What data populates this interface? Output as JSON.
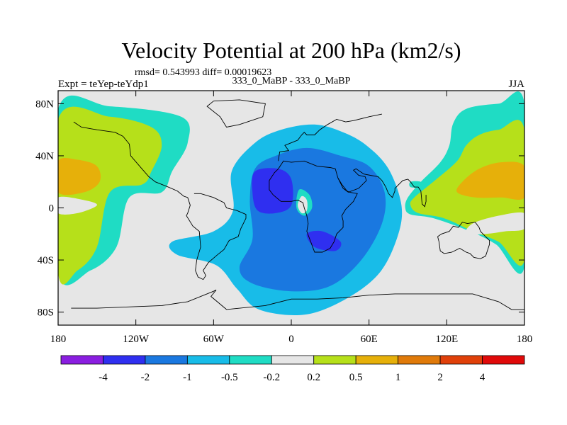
{
  "chart_data": {
    "type": "heatmap",
    "title": "Velocity Potential at 200 hPa (km2/s)",
    "stats_line": "rmsd= 0.543993 diff= 0.00019623",
    "left_label": "Expt = teYep-teYdp1",
    "center_label": "333_0_MaBP - 333_0_MaBP",
    "right_label": "JJA",
    "x_range": [
      -180,
      180
    ],
    "y_range": [
      -90,
      90
    ],
    "x_ticks": [
      {
        "value": -180,
        "label": "180"
      },
      {
        "value": -120,
        "label": "120W"
      },
      {
        "value": -60,
        "label": "60W"
      },
      {
        "value": 0,
        "label": "0"
      },
      {
        "value": 60,
        "label": "60E"
      },
      {
        "value": 120,
        "label": "120E"
      },
      {
        "value": 180,
        "label": "180"
      }
    ],
    "y_ticks": [
      {
        "value": 80,
        "label": "80N"
      },
      {
        "value": 40,
        "label": "40N"
      },
      {
        "value": 0,
        "label": "0"
      },
      {
        "value": -40,
        "label": "40S"
      },
      {
        "value": -80,
        "label": "80S"
      }
    ],
    "levels": [
      "-4",
      "-2",
      "-1",
      "-0.5",
      "-0.2",
      "0.2",
      "0.5",
      "1",
      "2",
      "4"
    ],
    "colors": [
      "#8a1ee0",
      "#2f2ff0",
      "#1a78e0",
      "#18bce8",
      "#1fdcc4",
      "#e6e6e6",
      "#b6e01a",
      "#e6b00a",
      "#e07a0a",
      "#e0400a",
      "#e00a0a"
    ],
    "background_color": "#e6e6e6",
    "regions": [
      {
        "level_index": 4,
        "pts": [
          [
            -180,
            76
          ],
          [
            -140,
            78
          ],
          [
            -85,
            70
          ],
          [
            -80,
            50
          ],
          [
            -92,
            28
          ],
          [
            -100,
            12
          ],
          [
            -125,
            8
          ],
          [
            -135,
            -30
          ],
          [
            -155,
            -48
          ],
          [
            -180,
            -50
          ]
        ]
      },
      {
        "level_index": 6,
        "pts": [
          [
            -180,
            68
          ],
          [
            -140,
            70
          ],
          [
            -108,
            62
          ],
          [
            -100,
            48
          ],
          [
            -108,
            28
          ],
          [
            -115,
            18
          ],
          [
            -140,
            12
          ],
          [
            -150,
            -30
          ],
          [
            -165,
            -48
          ],
          [
            -180,
            -50
          ]
        ]
      },
      {
        "level_index": 7,
        "pts": [
          [
            -180,
            36
          ],
          [
            -165,
            37
          ],
          [
            -150,
            32
          ],
          [
            -148,
            20
          ],
          [
            -160,
            12
          ],
          [
            -180,
            12
          ]
        ]
      },
      {
        "level_index": 5,
        "pts": [
          [
            -180,
            8
          ],
          [
            -160,
            6
          ],
          [
            -150,
            2
          ],
          [
            -165,
            -4
          ],
          [
            -180,
            -4
          ]
        ]
      },
      {
        "level_index": 4,
        "pts": [
          [
            180,
            80
          ],
          [
            160,
            80
          ],
          [
            135,
            76
          ],
          [
            125,
            65
          ],
          [
            122,
            48
          ],
          [
            115,
            35
          ],
          [
            100,
            20
          ],
          [
            90,
            8
          ],
          [
            88,
            0
          ],
          [
            92,
            -5
          ],
          [
            110,
            -8
          ],
          [
            138,
            -18
          ],
          [
            158,
            -28
          ],
          [
            180,
            -45
          ]
        ]
      },
      {
        "level_index": 6,
        "pts": [
          [
            180,
            60
          ],
          [
            160,
            60
          ],
          [
            145,
            56
          ],
          [
            135,
            48
          ],
          [
            128,
            36
          ],
          [
            112,
            22
          ],
          [
            95,
            8
          ],
          [
            92,
            2
          ],
          [
            98,
            -4
          ],
          [
            118,
            -8
          ],
          [
            140,
            -18
          ],
          [
            160,
            -26
          ],
          [
            180,
            -40
          ]
        ]
      },
      {
        "level_index": 7,
        "pts": [
          [
            180,
            32
          ],
          [
            162,
            35
          ],
          [
            145,
            30
          ],
          [
            132,
            20
          ],
          [
            128,
            12
          ],
          [
            142,
            8
          ],
          [
            162,
            8
          ],
          [
            180,
            8
          ]
        ]
      },
      {
        "level_index": 5,
        "pts": [
          [
            180,
            -4
          ],
          [
            160,
            -6
          ],
          [
            140,
            -12
          ],
          [
            135,
            -20
          ],
          [
            150,
            -20
          ],
          [
            165,
            -18
          ],
          [
            180,
            -16
          ]
        ]
      },
      {
        "level_index": 3,
        "pts": [
          [
            -92,
            -26
          ],
          [
            -60,
            -18
          ],
          [
            -45,
            -2
          ],
          [
            -46,
            28
          ],
          [
            -28,
            50
          ],
          [
            -8,
            60
          ],
          [
            18,
            64
          ],
          [
            40,
            58
          ],
          [
            58,
            48
          ],
          [
            75,
            30
          ],
          [
            85,
            2
          ],
          [
            82,
            -22
          ],
          [
            68,
            -50
          ],
          [
            42,
            -70
          ],
          [
            10,
            -82
          ],
          [
            -25,
            -78
          ],
          [
            -42,
            -62
          ],
          [
            -58,
            -44
          ],
          [
            -88,
            -36
          ]
        ]
      },
      {
        "level_index": 2,
        "pts": [
          [
            -40,
            -46
          ],
          [
            -30,
            -24
          ],
          [
            -32,
            6
          ],
          [
            -28,
            30
          ],
          [
            -12,
            40
          ],
          [
            12,
            46
          ],
          [
            38,
            40
          ],
          [
            60,
            32
          ],
          [
            72,
            12
          ],
          [
            70,
            -12
          ],
          [
            54,
            -40
          ],
          [
            30,
            -60
          ],
          [
            0,
            -64
          ],
          [
            -30,
            -58
          ]
        ]
      },
      {
        "level_index": 1,
        "pts": [
          [
            -28,
            28
          ],
          [
            -10,
            30
          ],
          [
            0,
            22
          ],
          [
            0,
            2
          ],
          [
            -12,
            -4
          ],
          [
            -26,
            -2
          ],
          [
            -30,
            12
          ]
        ]
      },
      {
        "level_index": 1,
        "pts": [
          [
            12,
            -20
          ],
          [
            24,
            -18
          ],
          [
            38,
            -26
          ],
          [
            34,
            -33
          ],
          [
            18,
            -30
          ]
        ]
      },
      {
        "level_index": 4,
        "pts": [
          [
            6,
            14
          ],
          [
            14,
            10
          ],
          [
            16,
            0
          ],
          [
            10,
            -6
          ],
          [
            4,
            0
          ]
        ]
      },
      {
        "level_index": 5,
        "pts": [
          [
            8,
            9
          ],
          [
            12,
            6
          ],
          [
            12,
            -2
          ],
          [
            8,
            -4
          ],
          [
            5,
            2
          ]
        ]
      },
      {
        "level_index": 4,
        "pts": [
          [
            92,
            20
          ],
          [
            100,
            20
          ],
          [
            100,
            16
          ],
          [
            92,
            16
          ]
        ]
      }
    ],
    "coastlines": [
      [
        [
          -168,
          66
        ],
        [
          -162,
          62
        ],
        [
          -150,
          60
        ],
        [
          -136,
          58
        ],
        [
          -130,
          55
        ],
        [
          -125,
          49
        ],
        [
          -124,
          40
        ],
        [
          -117,
          32
        ],
        [
          -110,
          24
        ],
        [
          -105,
          20
        ],
        [
          -95,
          16
        ],
        [
          -88,
          13
        ],
        [
          -83,
          9
        ],
        [
          -80,
          8
        ]
      ],
      [
        [
          -80,
          8
        ],
        [
          -78,
          2
        ],
        [
          -80,
          -4
        ],
        [
          -81,
          -6
        ],
        [
          -76,
          -14
        ],
        [
          -71,
          -18
        ],
        [
          -70,
          -30
        ],
        [
          -73,
          -40
        ],
        [
          -74,
          -48
        ],
        [
          -72,
          -53
        ],
        [
          -68,
          -55
        ],
        [
          -66,
          -52
        ],
        [
          -68,
          -48
        ],
        [
          -64,
          -42
        ],
        [
          -57,
          -36
        ],
        [
          -52,
          -32
        ],
        [
          -48,
          -25
        ],
        [
          -41,
          -22
        ],
        [
          -39,
          -16
        ],
        [
          -35,
          -8
        ],
        [
          -35,
          -5
        ],
        [
          -42,
          -2
        ],
        [
          -50,
          0
        ],
        [
          -52,
          4
        ],
        [
          -60,
          8
        ],
        [
          -70,
          11
        ],
        [
          -75,
          11
        ]
      ],
      [
        [
          -17,
          21
        ],
        [
          -17,
          14
        ],
        [
          -14,
          10
        ],
        [
          -8,
          5
        ],
        [
          0,
          5
        ],
        [
          5,
          6
        ],
        [
          9,
          4
        ],
        [
          10,
          0
        ],
        [
          12,
          -6
        ],
        [
          13,
          -12
        ],
        [
          12,
          -18
        ],
        [
          15,
          -26
        ],
        [
          18,
          -34
        ],
        [
          24,
          -34
        ],
        [
          30,
          -31
        ],
        [
          33,
          -26
        ],
        [
          35,
          -20
        ],
        [
          40,
          -15
        ],
        [
          40,
          -10
        ],
        [
          39,
          -6
        ],
        [
          42,
          -1
        ],
        [
          48,
          5
        ],
        [
          51,
          11
        ],
        [
          45,
          12
        ],
        [
          43,
          13
        ],
        [
          39,
          18
        ],
        [
          36,
          23
        ],
        [
          34,
          30
        ],
        [
          30,
          31
        ],
        [
          20,
          32
        ],
        [
          10,
          36
        ],
        [
          0,
          35
        ],
        [
          -6,
          36
        ],
        [
          -10,
          30
        ],
        [
          -13,
          27
        ],
        [
          -17,
          21
        ]
      ],
      [
        [
          -10,
          36
        ],
        [
          -9,
          43
        ],
        [
          -2,
          44
        ],
        [
          -5,
          48
        ],
        [
          0,
          50
        ],
        [
          5,
          52
        ],
        [
          8,
          56
        ],
        [
          10,
          58
        ],
        [
          12,
          56
        ],
        [
          18,
          56
        ],
        [
          22,
          60
        ],
        [
          28,
          64
        ],
        [
          35,
          68
        ],
        [
          42,
          66
        ],
        [
          48,
          67
        ],
        [
          60,
          70
        ],
        [
          70,
          72
        ]
      ],
      [
        [
          36,
          23
        ],
        [
          40,
          15
        ],
        [
          44,
          12
        ],
        [
          52,
          15
        ],
        [
          58,
          21
        ],
        [
          57,
          24
        ],
        [
          52,
          25
        ],
        [
          48,
          29
        ],
        [
          50,
          30
        ],
        [
          56,
          26
        ],
        [
          61,
          25
        ],
        [
          67,
          24
        ],
        [
          70,
          21
        ],
        [
          73,
          16
        ],
        [
          75,
          11
        ],
        [
          78,
          8
        ],
        [
          80,
          13
        ],
        [
          80,
          15
        ],
        [
          86,
          21
        ],
        [
          90,
          22
        ],
        [
          92,
          20
        ],
        [
          95,
          16
        ],
        [
          98,
          16
        ],
        [
          100,
          13
        ],
        [
          101,
          3
        ],
        [
          103,
          1
        ],
        [
          104,
          5
        ],
        [
          104,
          10
        ]
      ],
      [
        [
          113,
          -22
        ],
        [
          114,
          -26
        ],
        [
          115,
          -33
        ],
        [
          118,
          -35
        ],
        [
          124,
          -34
        ],
        [
          130,
          -31
        ],
        [
          135,
          -34
        ],
        [
          138,
          -35
        ],
        [
          141,
          -38
        ],
        [
          146,
          -39
        ],
        [
          150,
          -37
        ],
        [
          153,
          -28
        ],
        [
          153,
          -25
        ],
        [
          148,
          -20
        ],
        [
          146,
          -18
        ],
        [
          145,
          -15
        ],
        [
          142,
          -11
        ],
        [
          136,
          -12
        ],
        [
          132,
          -11
        ],
        [
          129,
          -15
        ],
        [
          125,
          -14
        ],
        [
          122,
          -18
        ],
        [
          116,
          -20
        ],
        [
          113,
          -22
        ]
      ],
      [
        [
          -170,
          -77
        ],
        [
          -150,
          -77
        ],
        [
          -100,
          -75
        ],
        [
          -80,
          -72
        ],
        [
          -60,
          -64
        ],
        [
          -58,
          -63
        ],
        [
          -62,
          -68
        ],
        [
          -50,
          -78
        ],
        [
          -20,
          -75
        ],
        [
          0,
          -70
        ],
        [
          20,
          -70
        ],
        [
          40,
          -69
        ],
        [
          60,
          -67
        ],
        [
          80,
          -66
        ],
        [
          100,
          -66
        ],
        [
          120,
          -66
        ],
        [
          140,
          -66
        ],
        [
          160,
          -72
        ],
        [
          170,
          -78
        ],
        [
          180,
          -78
        ]
      ],
      [
        [
          -60,
          82
        ],
        [
          -40,
          83
        ],
        [
          -20,
          80
        ],
        [
          -22,
          70
        ],
        [
          -40,
          64
        ],
        [
          -50,
          62
        ],
        [
          -55,
          70
        ],
        [
          -65,
          78
        ],
        [
          -60,
          82
        ]
      ]
    ]
  }
}
